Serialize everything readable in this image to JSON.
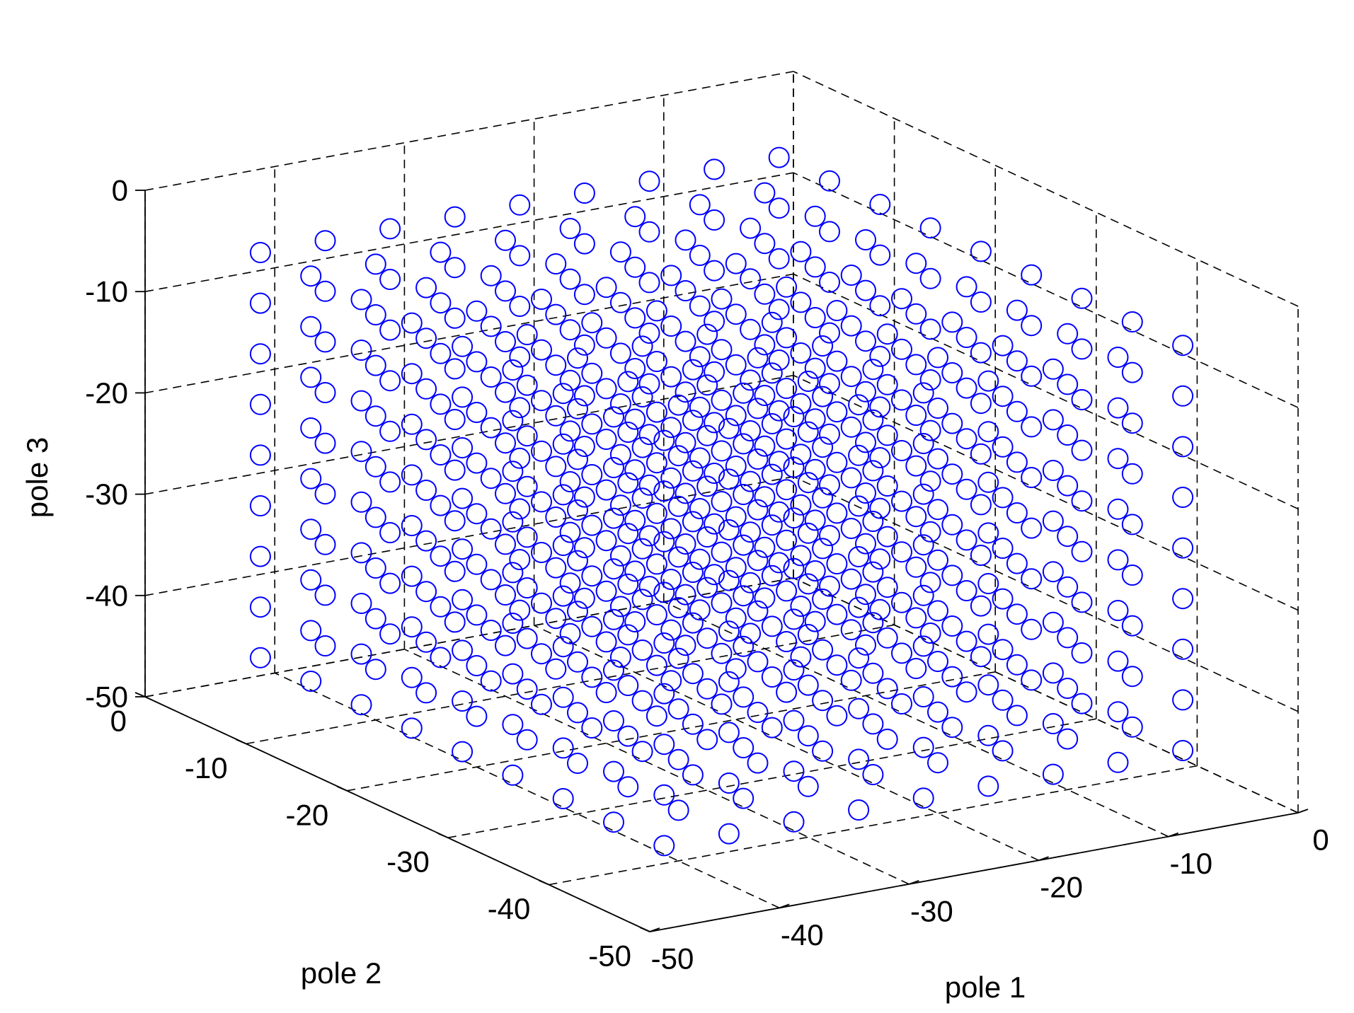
{
  "chart_data": {
    "type": "scatter",
    "projection": "3d",
    "marker": "circle",
    "marker_color": "#0000FF",
    "grid": true,
    "xlabel": "pole 1",
    "ylabel": "pole 2",
    "zlabel": "pole 3",
    "xlim": [
      -50,
      0
    ],
    "ylim": [
      -50,
      0
    ],
    "zlim": [
      -50,
      0
    ],
    "x_ticks": [
      "-50",
      "-40",
      "-30",
      "-20",
      "-10",
      "0"
    ],
    "y_ticks": [
      "-50",
      "-40",
      "-30",
      "-20",
      "-10",
      "0"
    ],
    "z_ticks": [
      "-50",
      "-40",
      "-30",
      "-20",
      "-10",
      "0"
    ],
    "point_grid": {
      "description": "all combinations (x, y, z) with x, y, z each taken from values",
      "values": [
        -45,
        -40,
        -35,
        -30,
        -25,
        -20,
        -15,
        -10,
        -5
      ]
    }
  }
}
